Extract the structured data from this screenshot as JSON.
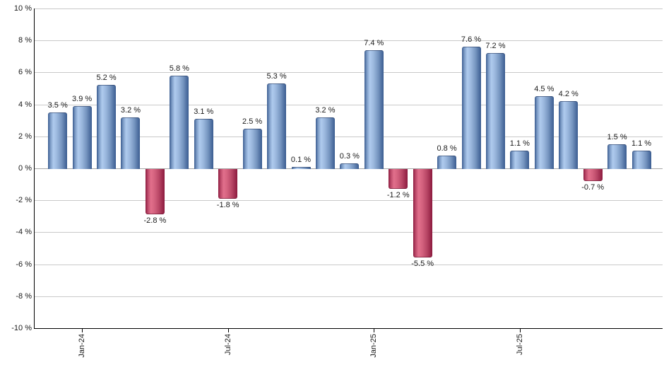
{
  "chart_data": {
    "type": "bar",
    "title": "",
    "unit": "%",
    "values": [
      3.5,
      3.9,
      5.2,
      3.2,
      -2.8,
      5.8,
      3.1,
      -1.8,
      2.5,
      5.3,
      0.1,
      3.2,
      0.3,
      7.4,
      -1.2,
      -5.5,
      0.8,
      7.6,
      7.2,
      1.1,
      4.5,
      4.2,
      -0.7,
      1.5,
      1.1
    ],
    "bar_labels": [
      "3.5 %",
      "3.9 %",
      "5.2 %",
      "3.2 %",
      "-2.8 %",
      "5.8 %",
      "3.1 %",
      "-1.8 %",
      "2.5 %",
      "5.3 %",
      "0.1 %",
      "3.2 %",
      "0.3 %",
      "7.4 %",
      "-1.2 %",
      "-5.5 %",
      "0.8 %",
      "7.6 %",
      "7.2 %",
      "1.1 %",
      "4.5 %",
      "4.2 %",
      "-0.7 %",
      "1.5 %",
      "1.1 %"
    ],
    "x_ticks": [
      {
        "bar_index": 1,
        "label": "Jan-24"
      },
      {
        "bar_index": 7,
        "label": "Jul-24"
      },
      {
        "bar_index": 13,
        "label": "Jan-25"
      },
      {
        "bar_index": 19,
        "label": "Jul-25"
      }
    ],
    "y_ticks": [
      10,
      8,
      6,
      4,
      2,
      0,
      -2,
      -4,
      -6,
      -8,
      -10
    ],
    "y_tick_labels": [
      "10 %",
      "8 %",
      "6 %",
      "4 %",
      "2 %",
      "0 %",
      "-2 %",
      "-4 %",
      "-6 %",
      "-8 %",
      "-10 %"
    ],
    "ylim": [
      -10,
      10
    ],
    "grid": true,
    "legend": "none",
    "colors": {
      "positive_bar_dark": "#3a5c90",
      "positive_bar_light": "#afcbee",
      "negative_bar_dark": "#8c1a3e",
      "negative_bar_light": "#e2708c",
      "gridline": "#c9c9c9",
      "zero_line": "#a8a8a8",
      "axis": "#000000",
      "label_text": "#1a1a1a",
      "background": "#ffffff"
    }
  }
}
